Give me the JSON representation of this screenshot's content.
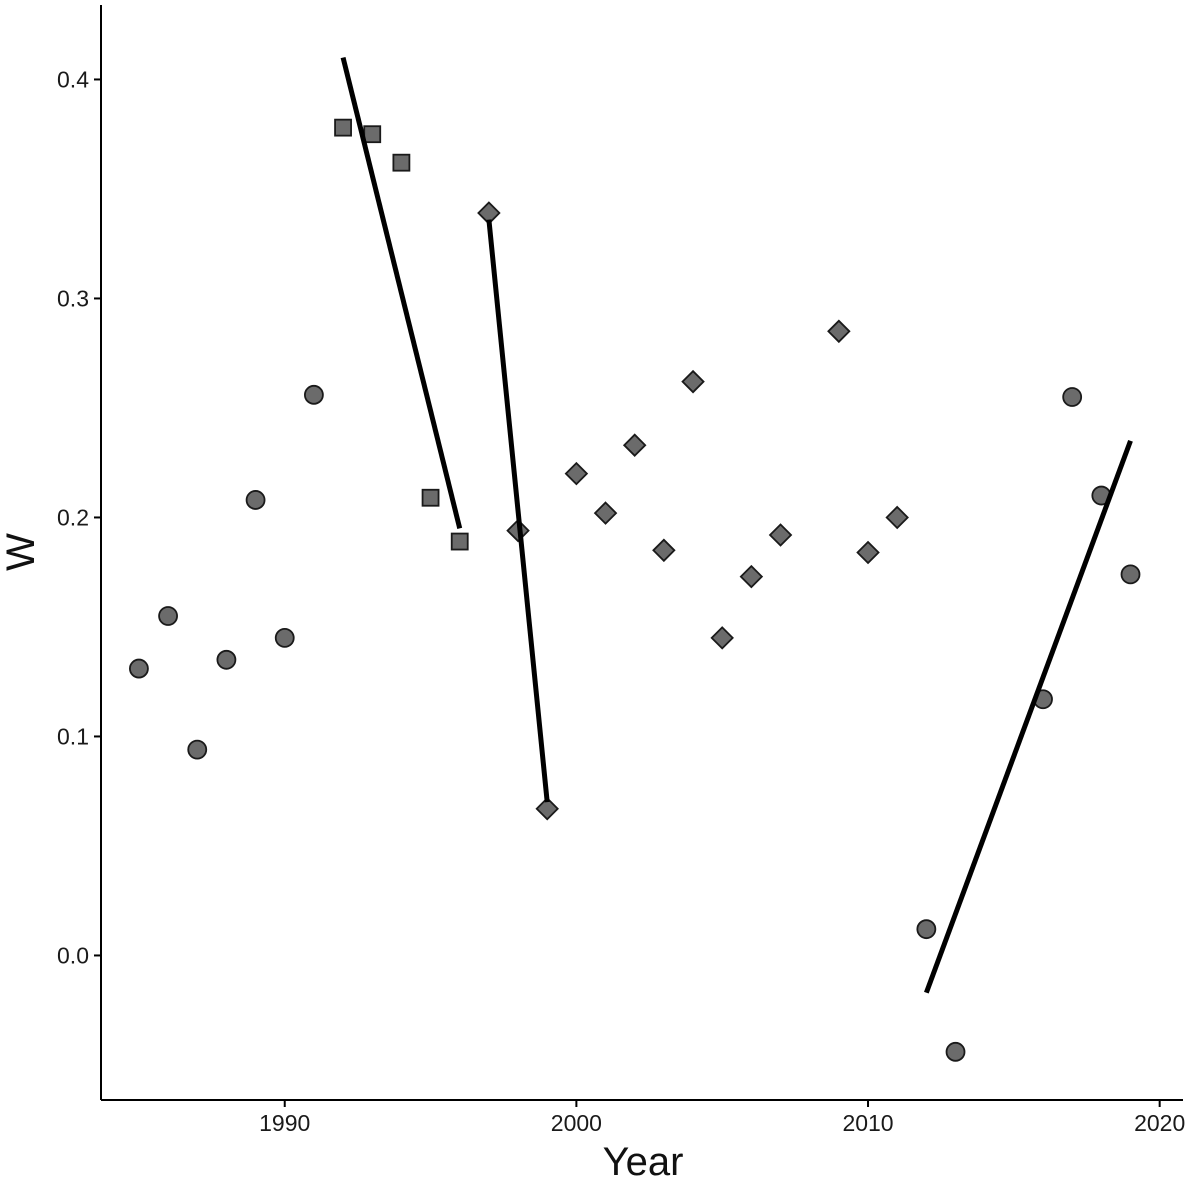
{
  "chart_data": {
    "type": "scatter",
    "title": "",
    "xlabel": "Year",
    "ylabel": "W",
    "xlim": [
      1983.7,
      2020.8
    ],
    "ylim": [
      -0.066,
      0.434
    ],
    "xticks": [
      1990,
      2000,
      2010,
      2020
    ],
    "yticks": [
      0.0,
      0.1,
      0.2,
      0.3,
      0.4
    ],
    "ytick_labels": [
      "0.0",
      "0.1",
      "0.2",
      "0.3",
      "0.4"
    ],
    "grid": false,
    "legend": "none",
    "marker_color": "#6b6b6b",
    "series": [
      {
        "marker": "circle",
        "x": [
          1985,
          1986,
          1987,
          1988,
          1989,
          1990,
          1991
        ],
        "y": [
          0.131,
          0.155,
          0.094,
          0.135,
          0.208,
          0.145,
          0.256
        ]
      },
      {
        "marker": "square",
        "x": [
          1992,
          1993,
          1994,
          1995,
          1996
        ],
        "y": [
          0.378,
          0.375,
          0.362,
          0.209,
          0.189
        ]
      },
      {
        "marker": "diamond",
        "x": [
          1997,
          1998,
          1999,
          2000,
          2001,
          2002,
          2003,
          2004,
          2005,
          2006,
          2007,
          2009,
          2010,
          2011
        ],
        "y": [
          0.339,
          0.194,
          0.067,
          0.22,
          0.202,
          0.233,
          0.185,
          0.262,
          0.145,
          0.173,
          0.192,
          0.285,
          0.184,
          0.2
        ]
      },
      {
        "marker": "circle",
        "x": [
          2012,
          2013,
          2016,
          2017,
          2018,
          2019
        ],
        "y": [
          0.012,
          -0.044,
          0.117,
          0.255,
          0.21,
          0.174
        ]
      }
    ],
    "fit_lines": [
      {
        "x": [
          1992,
          1996
        ],
        "y": [
          0.41,
          0.195
        ]
      },
      {
        "x": [
          1997,
          1999
        ],
        "y": [
          0.336,
          0.07
        ]
      },
      {
        "x": [
          2012,
          2019
        ],
        "y": [
          -0.017,
          0.235
        ]
      }
    ]
  }
}
